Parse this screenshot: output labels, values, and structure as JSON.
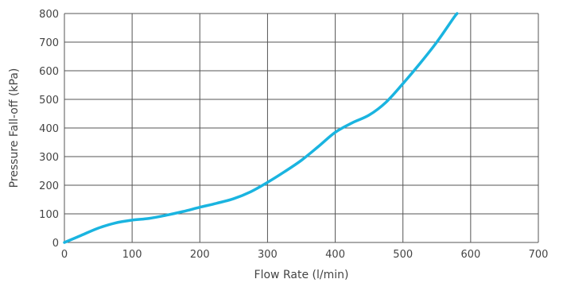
{
  "chart_data": {
    "type": "line",
    "title": "",
    "xlabel": "Flow Rate (l/min)",
    "ylabel": "Pressure Fall-off (kPa)",
    "xlim": [
      0,
      700
    ],
    "ylim": [
      0,
      800
    ],
    "x_ticks": [
      "0",
      "100",
      "200",
      "300",
      "400",
      "500",
      "600",
      "700"
    ],
    "y_ticks": [
      "0",
      "100",
      "200",
      "300",
      "400",
      "500",
      "600",
      "700",
      "800"
    ],
    "grid": true,
    "legend": "none",
    "series": [
      {
        "color": "#1ab4e0",
        "points": [
          [
            0,
            0
          ],
          [
            25,
            25
          ],
          [
            50,
            50
          ],
          [
            75,
            68
          ],
          [
            100,
            78
          ],
          [
            125,
            84
          ],
          [
            150,
            95
          ],
          [
            175,
            108
          ],
          [
            200,
            123
          ],
          [
            225,
            137
          ],
          [
            250,
            153
          ],
          [
            275,
            177
          ],
          [
            300,
            210
          ],
          [
            325,
            247
          ],
          [
            350,
            287
          ],
          [
            375,
            335
          ],
          [
            400,
            385
          ],
          [
            425,
            418
          ],
          [
            450,
            445
          ],
          [
            475,
            490
          ],
          [
            500,
            555
          ],
          [
            525,
            625
          ],
          [
            550,
            700
          ],
          [
            575,
            785
          ],
          [
            580,
            800
          ]
        ]
      }
    ]
  }
}
